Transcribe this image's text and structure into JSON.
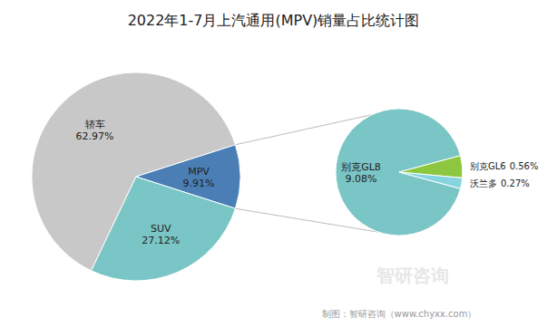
{
  "chart_data": [
    {
      "type": "pie",
      "title": "2022年1-7月上汽通用(MPV)销量占比统计图",
      "categories": [
        "轿车",
        "MPV",
        "SUV"
      ],
      "values": [
        62.97,
        9.91,
        27.12
      ],
      "value_labels": [
        "62.97%",
        "9.91%",
        "27.12%"
      ],
      "colors": [
        "#c8c8c8",
        "#4a7eb5",
        "#7ac5c5"
      ],
      "data_labels": true
    },
    {
      "type": "pie",
      "categories": [
        "别克GL8",
        "别克GL6",
        "沃兰多"
      ],
      "values": [
        9.08,
        0.56,
        0.27
      ],
      "value_labels": [
        "9.08%",
        "0.56%",
        "0.27%"
      ],
      "colors": [
        "#7ac5c5",
        "#8dc63f",
        "#85d4e0"
      ],
      "data_labels": true,
      "annotations": [
        "制图：智研咨询（www.chyxx.com）",
        "智研咨询"
      ]
    }
  ]
}
